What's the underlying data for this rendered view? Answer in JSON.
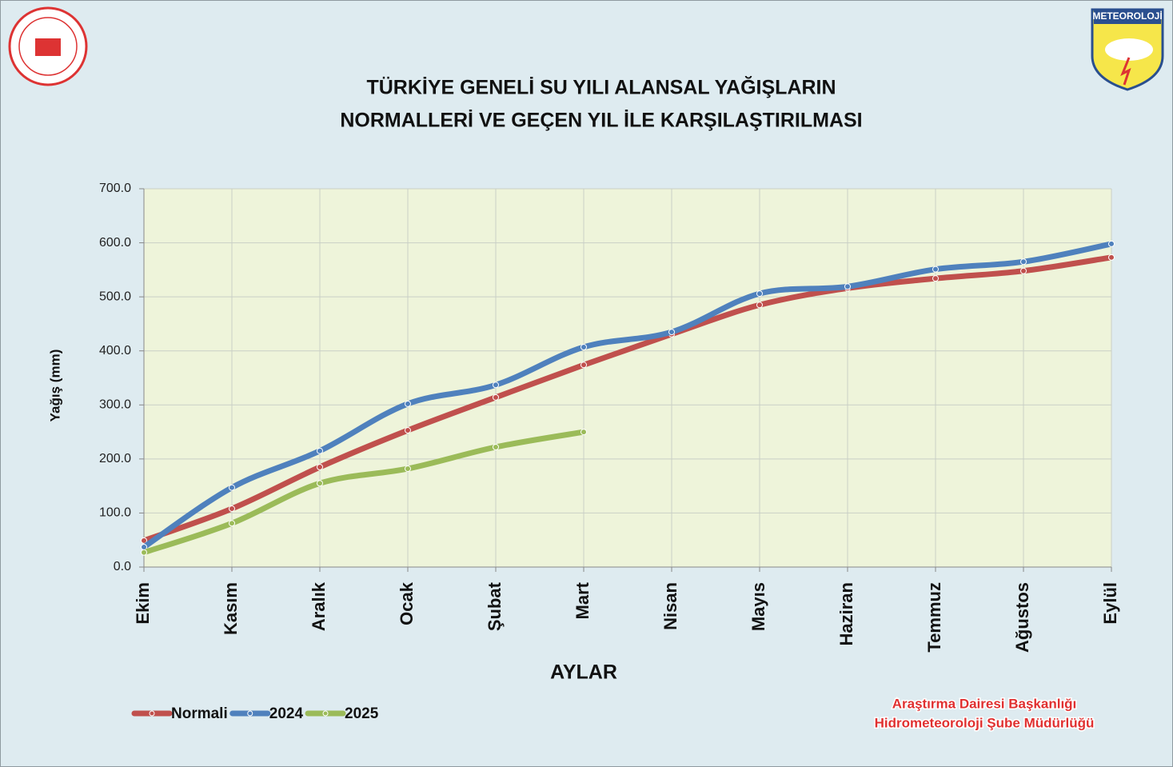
{
  "chart_data": {
    "type": "line",
    "logo_text": "METEOROLOJİ",
    "title": [
      "TÜRKİYE GENELİ SU YILI ALANSAL YAĞIŞLARIN",
      "NORMALLERİ VE GEÇEN YIL İLE KARŞILAŞTIRILMASI"
    ],
    "y_label": "Yağış (mm)",
    "x_label": "AYLAR",
    "footer": [
      "Araştırma Dairesi Başkanlığı",
      "Hidrometeoroloji Şube Müdürlüğü"
    ],
    "categories": [
      "Ekim",
      "Kasım",
      "Aralık",
      "Ocak",
      "Şubat",
      "Mart",
      "Nisan",
      "Mayıs",
      "Haziran",
      "Temmuz",
      "Ağustos",
      "Eylül"
    ],
    "series": [
      {
        "name": "Normali",
        "color": "#c0504d",
        "values": [
          49,
          108,
          185,
          253,
          314,
          374,
          431,
          485,
          516,
          534,
          548,
          573
        ]
      },
      {
        "name": "2024",
        "color": "#4f81bd",
        "values": [
          37,
          147,
          215,
          302,
          337,
          407,
          435,
          506,
          519,
          551,
          565,
          598
        ]
      },
      {
        "name": "2025",
        "color": "#9bbb59",
        "values": [
          27,
          81,
          155,
          182,
          222,
          250,
          null,
          null,
          null,
          null,
          null,
          null
        ]
      }
    ],
    "ylim": [
      0,
      700
    ],
    "yticks": [
      {
        "value": 0,
        "label": "0.0"
      },
      {
        "value": 100,
        "label": "100.0"
      },
      {
        "value": 200,
        "label": "200.0"
      },
      {
        "value": 300,
        "label": "300.0"
      },
      {
        "value": 400,
        "label": "400.0"
      },
      {
        "value": 500,
        "label": "500.0"
      },
      {
        "value": 600,
        "label": "600.0"
      },
      {
        "value": 700,
        "label": "700.0"
      }
    ],
    "grid": true
  }
}
